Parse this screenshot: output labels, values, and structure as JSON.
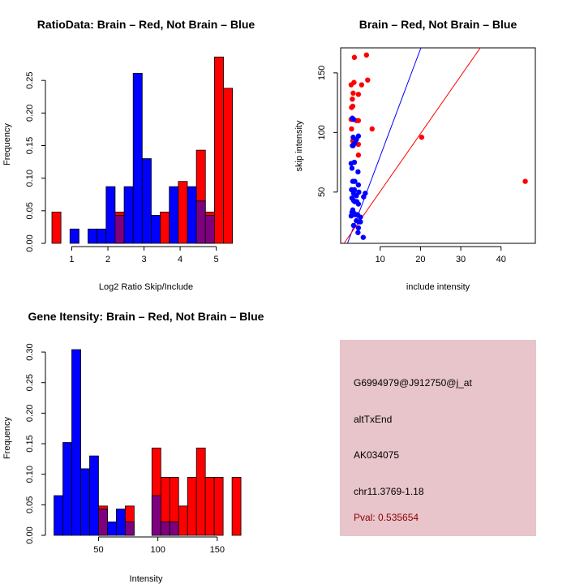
{
  "colors": {
    "brain": "#ff0000",
    "not_brain": "#0000ff",
    "overlap": "#7f007f",
    "info_panel": "#e8c4cb",
    "pval": "#8b0000"
  },
  "chart_data": [
    {
      "id": "ratio",
      "type": "bar",
      "title": "RatioData: Brain – Red, Not Brain – Blue",
      "xlabel": "Log2 Ratio Skip/Include",
      "ylabel": "Frequency",
      "xlim": [
        0.36,
        5.75
      ],
      "ylim": [
        0,
        0.3
      ],
      "xticks": [
        1,
        2,
        3,
        4,
        5
      ],
      "xtick_labels": [
        "1",
        "2",
        "3",
        "4",
        "5"
      ],
      "yticks": [
        0,
        0.05,
        0.1,
        0.15,
        0.2,
        0.25
      ],
      "ytick_labels": [
        "0.00",
        "0.05",
        "0.10",
        "0.15",
        "0.20",
        "0.25"
      ],
      "bin_width": 0.25,
      "bin_starts": [
        0.45,
        0.7,
        0.95,
        1.2,
        1.45,
        1.7,
        1.95,
        2.2,
        2.45,
        2.7,
        2.95,
        3.2,
        3.45,
        3.7,
        3.95,
        4.2,
        4.45,
        4.7,
        4.95,
        5.2,
        5.45
      ],
      "series": [
        {
          "name": "Brain",
          "color": "#ff0000",
          "values": [
            0.048,
            0,
            0,
            0,
            0,
            0,
            0,
            0.048,
            0,
            0,
            0,
            0,
            0.048,
            0,
            0.095,
            0,
            0.143,
            0.048,
            0.286,
            0.238,
            0
          ]
        },
        {
          "name": "Not Brain",
          "color": "#0000ff",
          "values": [
            0,
            0,
            0.022,
            0,
            0.022,
            0.022,
            0.087,
            0.043,
            0.087,
            0.261,
            0.13,
            0.043,
            0,
            0.087,
            0,
            0.087,
            0.065,
            0.043,
            0,
            0,
            0
          ]
        }
      ]
    },
    {
      "id": "scatter",
      "type": "scatter",
      "title": "Brain – Red, Not Brain – Blue",
      "xlabel": "include intensity",
      "ylabel": "skip intensity",
      "xlim": [
        0.2,
        48.5
      ],
      "ylim": [
        7,
        171
      ],
      "xticks": [
        10,
        20,
        30,
        40
      ],
      "xtick_labels": [
        "10",
        "20",
        "30",
        "40"
      ],
      "yticks": [
        50,
        100,
        150
      ],
      "ytick_labels": [
        "50",
        "100",
        "150"
      ],
      "series": [
        {
          "name": "Brain",
          "color": "#ff0000",
          "points": [
            [
              3.6,
              163
            ],
            [
              6.6,
              165
            ],
            [
              2.8,
              140
            ],
            [
              3.5,
              142
            ],
            [
              5.4,
              140
            ],
            [
              6.9,
              144
            ],
            [
              4.6,
              132
            ],
            [
              3.3,
              133
            ],
            [
              3.1,
              128
            ],
            [
              3.2,
              122
            ],
            [
              2.9,
              121
            ],
            [
              2.8,
              111
            ],
            [
              4.1,
              110
            ],
            [
              4.6,
              110
            ],
            [
              2.9,
              103
            ],
            [
              8.0,
              103
            ],
            [
              3.2,
              93
            ],
            [
              3.6,
              94
            ],
            [
              4.6,
              90
            ],
            [
              4.6,
              81
            ],
            [
              20.3,
              96
            ],
            [
              46.0,
              59
            ]
          ]
        },
        {
          "name": "Not Brain",
          "color": "#0000ff",
          "points": [
            [
              3.1,
              112
            ],
            [
              3.4,
              111
            ],
            [
              3.3,
              96
            ],
            [
              4.1,
              94
            ],
            [
              4.6,
              97
            ],
            [
              3.1,
              89
            ],
            [
              3.3,
              89
            ],
            [
              3.7,
              91
            ],
            [
              2.8,
              74
            ],
            [
              3.6,
              75
            ],
            [
              3.0,
              70
            ],
            [
              4.5,
              67
            ],
            [
              3.2,
              59
            ],
            [
              3.7,
              59
            ],
            [
              4.6,
              56
            ],
            [
              2.9,
              52
            ],
            [
              3.6,
              52
            ],
            [
              3.4,
              49
            ],
            [
              4.7,
              50
            ],
            [
              6.3,
              49
            ],
            [
              5.9,
              46
            ],
            [
              4.1,
              47
            ],
            [
              3.0,
              45
            ],
            [
              3.4,
              43
            ],
            [
              4.2,
              42
            ],
            [
              3.7,
              42
            ],
            [
              4.6,
              40
            ],
            [
              3.2,
              35
            ],
            [
              3.0,
              33
            ],
            [
              2.8,
              30
            ],
            [
              3.8,
              31
            ],
            [
              4.4,
              31
            ],
            [
              5.1,
              29
            ],
            [
              4.1,
              26
            ],
            [
              5.1,
              25
            ],
            [
              4.7,
              25
            ],
            [
              3.4,
              22
            ],
            [
              4.6,
              20
            ],
            [
              4.5,
              16
            ],
            [
              5.8,
              12
            ],
            [
              3.6,
              32
            ]
          ]
        }
      ],
      "lines": [
        {
          "color": "#0000ff",
          "slope": 9.0,
          "intercept": -10
        },
        {
          "color": "#ff0000",
          "slope": 4.85,
          "intercept": 2
        }
      ]
    },
    {
      "id": "intensity",
      "type": "bar",
      "title": "Gene Itensity: Brain – Red, Not Brain – Blue",
      "xlabel": "Intensity",
      "ylabel": "Frequency",
      "xlim": [
        8,
        172
      ],
      "ylim": [
        0,
        0.32
      ],
      "xticks": [
        50,
        100,
        150
      ],
      "xtick_labels": [
        "50",
        "100",
        "150"
      ],
      "yticks": [
        0,
        0.05,
        0.1,
        0.15,
        0.2,
        0.25,
        0.3
      ],
      "ytick_labels": [
        "0.00",
        "0.05",
        "0.10",
        "0.15",
        "0.20",
        "0.25",
        "0.30"
      ],
      "bin_width": 7.5,
      "bin_starts": [
        12.5,
        20,
        27.5,
        35,
        42.5,
        50,
        57.5,
        65,
        72.5,
        80,
        87.5,
        95,
        102.5,
        110,
        117.5,
        125,
        132.5,
        140,
        147.5,
        155,
        162.5
      ],
      "series": [
        {
          "name": "Brain",
          "color": "#ff0000",
          "values": [
            0,
            0,
            0,
            0,
            0,
            0.048,
            0,
            0,
            0.048,
            0,
            0,
            0.143,
            0.095,
            0.095,
            0.048,
            0.095,
            0.143,
            0.095,
            0.095,
            0,
            0.095
          ]
        },
        {
          "name": "Not Brain",
          "color": "#0000ff",
          "values": [
            0.065,
            0.152,
            0.304,
            0.109,
            0.13,
            0.043,
            0.022,
            0.043,
            0.022,
            0,
            0,
            0.065,
            0.022,
            0.022,
            0,
            0,
            0,
            0,
            0,
            0,
            0
          ]
        }
      ]
    }
  ],
  "info": {
    "probe_id": "G6994979@J912750@j_at",
    "event_type": "altTxEnd",
    "accession": "AK034075",
    "location": "chr11.3769-1.18",
    "pval": "Pval: 0.535654"
  }
}
